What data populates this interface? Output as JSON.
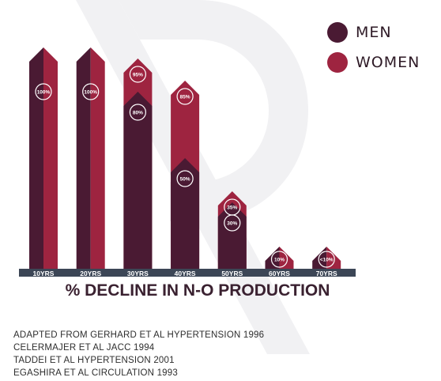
{
  "chart_data": {
    "type": "bar",
    "title": "% DECLINE IN N-O PRODUCTION",
    "categories": [
      "10YRS",
      "20YRS",
      "30YRS",
      "40YRS",
      "50YRS",
      "60YRS",
      "70YRS"
    ],
    "series": [
      {
        "name": "MEN",
        "values": [
          100,
          100,
          80,
          50,
          30,
          10,
          10
        ],
        "labels": [
          "100%",
          "100%",
          "80%",
          "50%",
          "30%",
          "10%",
          "<10%"
        ]
      },
      {
        "name": "WOMEN",
        "values": [
          100,
          100,
          95,
          85,
          35,
          10,
          10
        ],
        "labels": [
          "",
          "",
          "95%",
          "85%",
          "35%",
          "",
          ""
        ]
      }
    ],
    "ylim": [
      0,
      100
    ],
    "colors": {
      "men": "#4a1a33",
      "women": "#9e2440",
      "axis": "#3c4656"
    },
    "legend": "top-right"
  },
  "legend": {
    "men_label": "MEN",
    "women_label": "WOMEN"
  },
  "references": [
    "ADAPTED FROM GERHARD ET AL HYPERTENSION 1996",
    "CELERMAJER ET AL JACC 1994",
    "TADDEI ET AL HYPERTENSION 2001",
    "EGASHIRA ET AL CIRCULATION 1993"
  ]
}
